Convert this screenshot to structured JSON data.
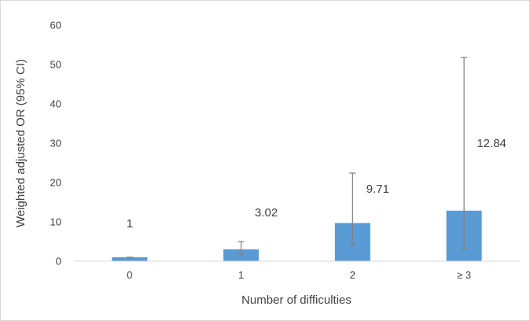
{
  "chart_data": {
    "type": "bar",
    "categories": [
      "0",
      "1",
      "2",
      "≥ 3"
    ],
    "values": [
      1,
      3.02,
      9.71,
      12.84
    ],
    "ci_lower": [
      1,
      1.8,
      4.3,
      3.2
    ],
    "ci_upper": [
      1,
      5.0,
      22.4,
      51.8
    ],
    "data_labels": [
      "1",
      "3.02",
      "9.71",
      "12.84"
    ],
    "title": "",
    "xlabel": "Number of difficulties",
    "ylabel": "Weighted adjusted OR (95% CI)",
    "ylim": [
      0,
      60
    ],
    "yticks": [
      "0",
      "10",
      "20",
      "30",
      "40",
      "50",
      "60"
    ],
    "grid": false,
    "legend": "none",
    "colors": {
      "bar": "#5b9bd5",
      "error_bar": "#7f7f7f",
      "axis": "#d9d9d9",
      "text": "#404040"
    }
  }
}
